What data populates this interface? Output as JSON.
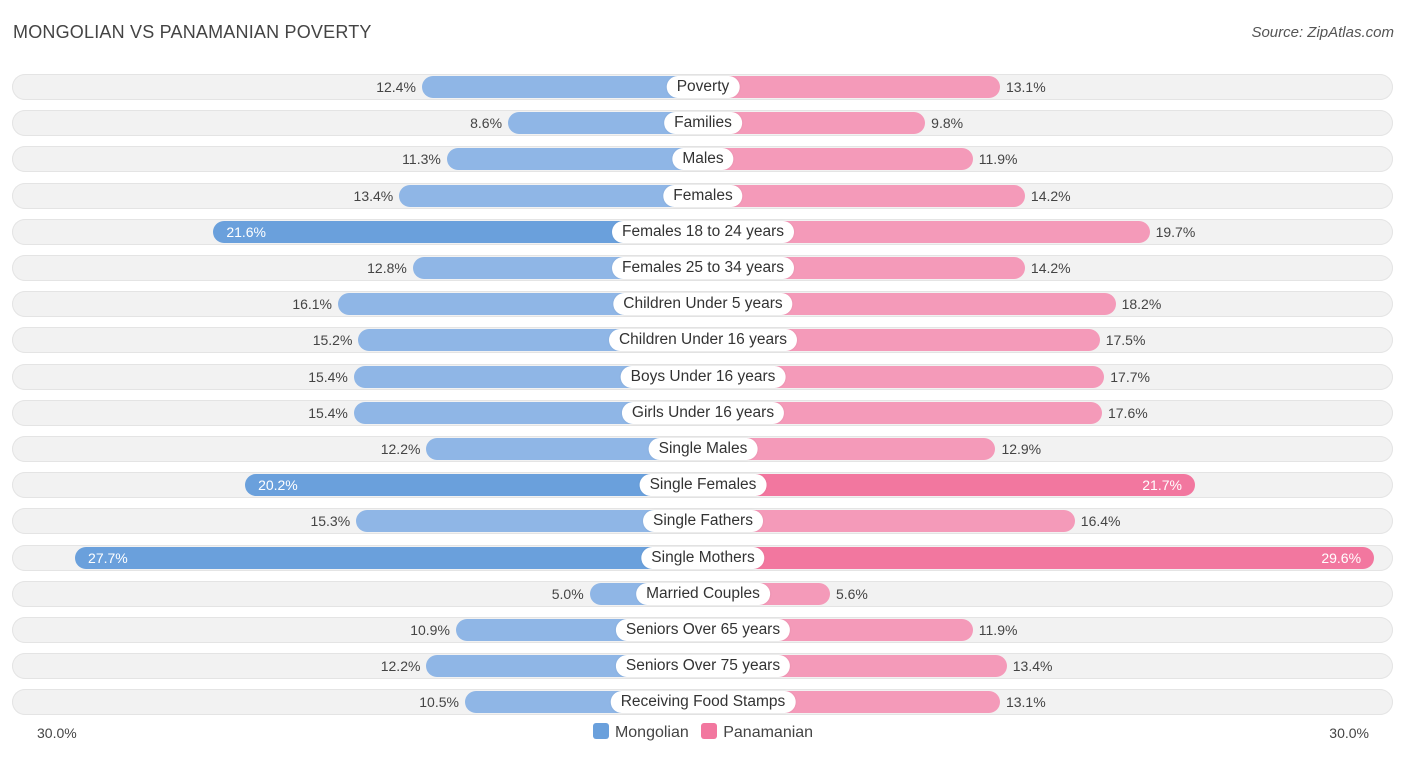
{
  "title": "MONGOLIAN VS PANAMANIAN POVERTY",
  "source": "Source: ZipAtlas.com",
  "colors": {
    "mongolian": "#8fb6e6",
    "mongolian_strong": "#6aa0dc",
    "panamanian": "#f49ab9",
    "panamanian_strong": "#f2779f"
  },
  "chart_data": {
    "type": "bar",
    "orientation": "horizontal-diverging",
    "title": "MONGOLIAN VS PANAMANIAN POVERTY",
    "xlim": [
      0,
      30
    ],
    "axis_min_label": "30.0%",
    "axis_max_label": "30.0%",
    "legend_position": "bottom-center",
    "categories": [
      "Poverty",
      "Families",
      "Males",
      "Females",
      "Females 18 to 24 years",
      "Females 25 to 34 years",
      "Children Under 5 years",
      "Children Under 16 years",
      "Boys Under 16 years",
      "Girls Under 16 years",
      "Single Males",
      "Single Females",
      "Single Fathers",
      "Single Mothers",
      "Married Couples",
      "Seniors Over 65 years",
      "Seniors Over 75 years",
      "Receiving Food Stamps"
    ],
    "series": [
      {
        "name": "Mongolian",
        "values": [
          12.4,
          8.6,
          11.3,
          13.4,
          21.6,
          12.8,
          16.1,
          15.2,
          15.4,
          15.4,
          12.2,
          20.2,
          15.3,
          27.7,
          5.0,
          10.9,
          12.2,
          10.5
        ],
        "labels": [
          "12.4%",
          "8.6%",
          "11.3%",
          "13.4%",
          "21.6%",
          "12.8%",
          "16.1%",
          "15.2%",
          "15.4%",
          "15.4%",
          "12.2%",
          "20.2%",
          "15.3%",
          "27.7%",
          "5.0%",
          "10.9%",
          "12.2%",
          "10.5%"
        ]
      },
      {
        "name": "Panamanian",
        "values": [
          13.1,
          9.8,
          11.9,
          14.2,
          19.7,
          14.2,
          18.2,
          17.5,
          17.7,
          17.6,
          12.9,
          21.7,
          16.4,
          29.6,
          5.6,
          11.9,
          13.4,
          13.1
        ],
        "labels": [
          "13.1%",
          "9.8%",
          "11.9%",
          "14.2%",
          "19.7%",
          "14.2%",
          "18.2%",
          "17.5%",
          "17.7%",
          "17.6%",
          "12.9%",
          "21.7%",
          "16.4%",
          "29.6%",
          "5.6%",
          "11.9%",
          "13.4%",
          "13.1%"
        ]
      }
    ]
  }
}
